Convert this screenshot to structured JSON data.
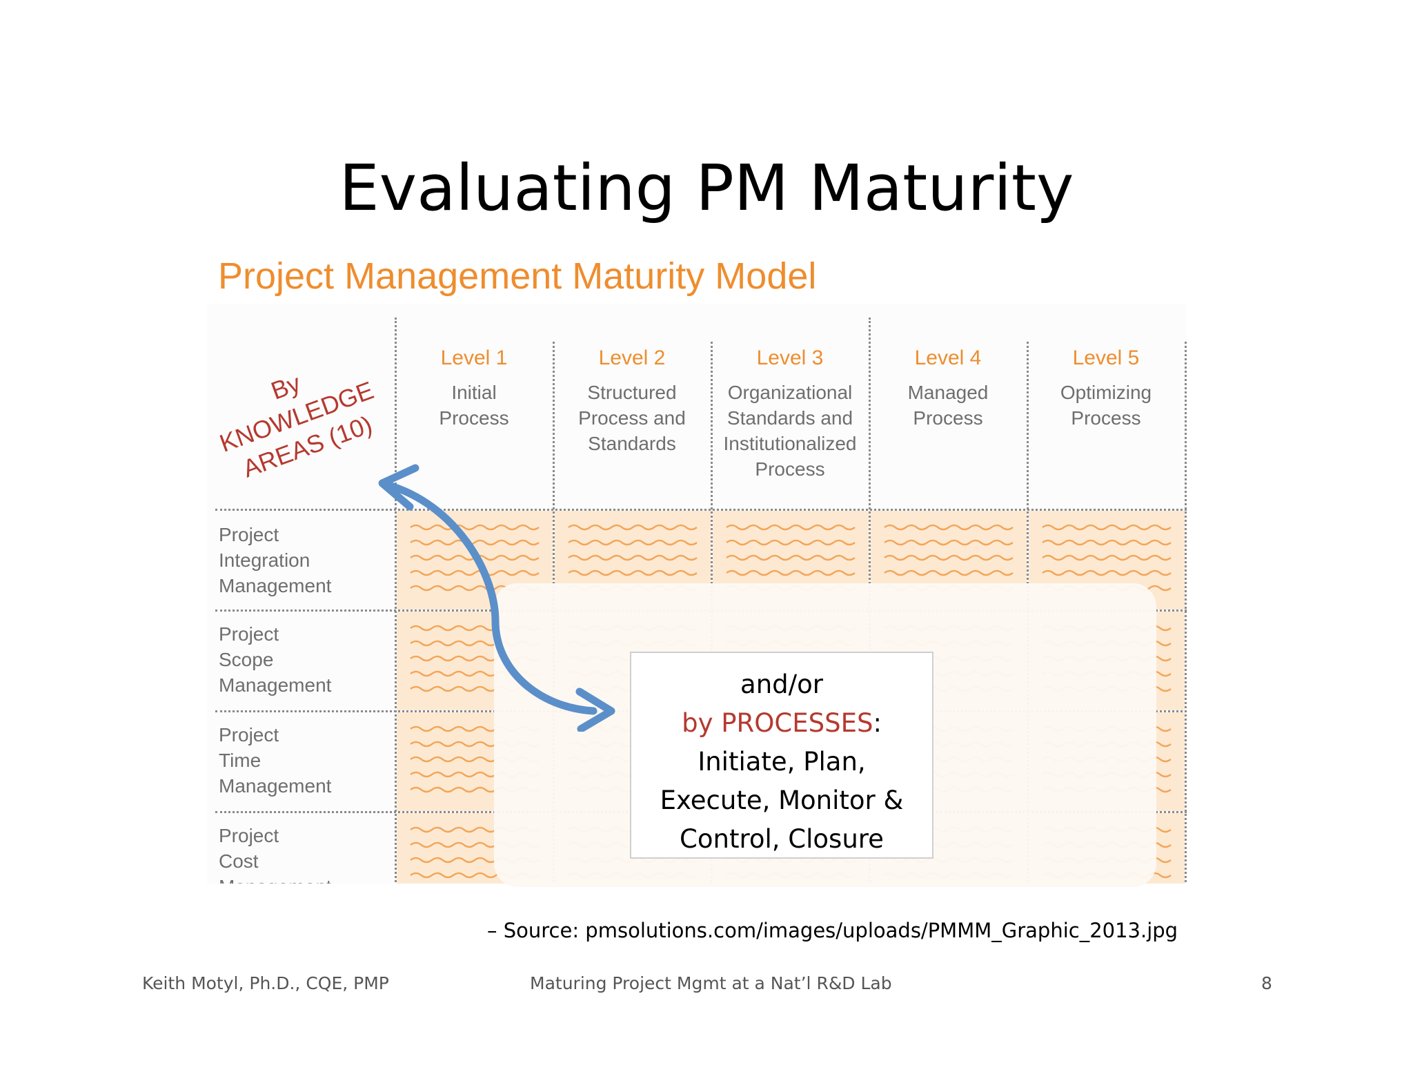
{
  "slide": {
    "title": "Evaluating PM Maturity",
    "source": "– Source: pmsolutions.com/images/uploads/PMMM_Graphic_2013.jpg"
  },
  "figure": {
    "title": "Project Management Maturity Model",
    "levels": [
      {
        "label": "Level 1",
        "desc": [
          "Initial",
          "Process"
        ]
      },
      {
        "label": "Level 2",
        "desc": [
          "Structured",
          "Process and",
          "Standards"
        ]
      },
      {
        "label": "Level 3",
        "desc": [
          "Organizational",
          "Standards and",
          "Institutionalized",
          "Process"
        ]
      },
      {
        "label": "Level 4",
        "desc": [
          "Managed",
          "Process"
        ]
      },
      {
        "label": "Level 5",
        "desc": [
          "Optimizing",
          "Process"
        ]
      }
    ],
    "rows": [
      [
        "Project",
        "Integration",
        "Management"
      ],
      [
        "Project",
        "Scope",
        "Management"
      ],
      [
        "Project",
        "Time",
        "Management"
      ],
      [
        "Project",
        "Cost",
        "Management"
      ]
    ],
    "colors": {
      "accent_orange": "#ee8d2e",
      "cell_fill": "#fde9d2",
      "annotation_red": "#b5392f",
      "arrow_blue": "#5b8fc9"
    }
  },
  "annotation": {
    "knowledge_areas": [
      "By",
      "KNOWLEDGE",
      "AREAS (10)"
    ],
    "process_lines": {
      "line1": "and/or",
      "line2_red": "by PROCESSES",
      "line2_rest": ":",
      "line3": "Initiate, Plan,",
      "line4": "Execute, Monitor &",
      "line5": "Control, Closure"
    },
    "arrow_icon": "double-headed-curved-arrow-icon"
  },
  "footer": {
    "author": "Keith Motyl, Ph.D., CQE, PMP",
    "talk": "Maturing Project Mgmt at a Nat’l R&D Lab",
    "page": "8"
  }
}
